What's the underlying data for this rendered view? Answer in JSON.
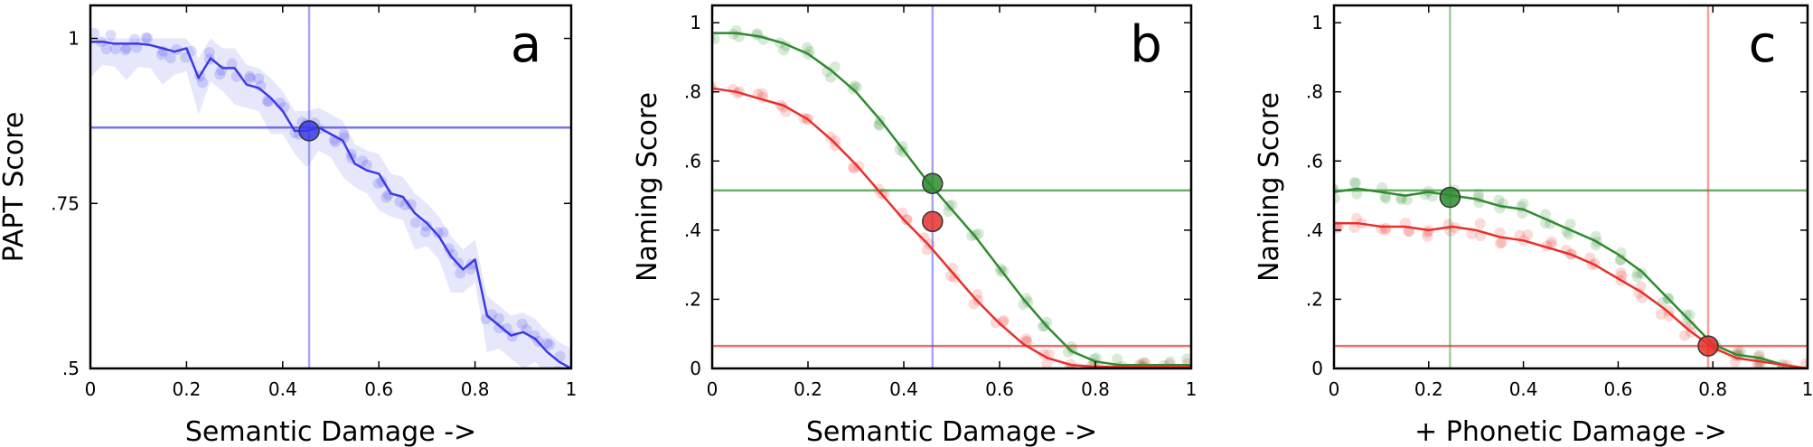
{
  "figure": {
    "colors": {
      "blue": "#3a3ae8",
      "green": "#2e8b2e",
      "red": "#e8302a"
    }
  },
  "chart_data": [
    {
      "type": "line",
      "panel_label": "a",
      "xlabel": "Semantic Damage ->",
      "ylabel": "PAPT Score",
      "xlim": [
        0,
        1
      ],
      "ylim": [
        0.5,
        1.05
      ],
      "xticks": [
        0,
        0.2,
        0.4,
        0.6,
        0.8,
        1
      ],
      "xtick_labels": [
        "0",
        "0.2",
        "0.4",
        "0.6",
        "0.8",
        "1"
      ],
      "yticks": [
        0.5,
        0.75,
        1
      ],
      "ytick_labels": [
        ".5",
        ".75",
        "1"
      ],
      "grid": false,
      "series": [
        {
          "color": "#3a3ae8",
          "x": [
            0,
            0.025,
            0.05,
            0.075,
            0.1,
            0.125,
            0.15,
            0.175,
            0.2,
            0.225,
            0.25,
            0.275,
            0.3,
            0.325,
            0.35,
            0.375,
            0.4,
            0.425,
            0.45,
            0.475,
            0.5,
            0.525,
            0.55,
            0.575,
            0.6,
            0.625,
            0.65,
            0.675,
            0.7,
            0.725,
            0.75,
            0.775,
            0.8,
            0.825,
            0.85,
            0.875,
            0.9,
            0.925,
            0.95,
            0.975,
            1
          ],
          "y": [
            0.995,
            0.995,
            0.992,
            0.992,
            0.992,
            0.99,
            0.985,
            0.98,
            0.985,
            0.94,
            0.97,
            0.955,
            0.955,
            0.93,
            0.925,
            0.91,
            0.89,
            0.86,
            0.86,
            0.865,
            0.855,
            0.845,
            0.81,
            0.8,
            0.795,
            0.765,
            0.76,
            0.735,
            0.72,
            0.7,
            0.67,
            0.65,
            0.665,
            0.58,
            0.565,
            0.55,
            0.555,
            0.545,
            0.525,
            0.51,
            0.5
          ]
        }
      ],
      "marker": {
        "x": 0.455,
        "y": 0.86,
        "color": "#3a3ae8"
      },
      "hline": {
        "y": 0.865,
        "color": "#3a3ae8"
      },
      "vline": {
        "x": 0.455,
        "color": "#3a3ae8"
      }
    },
    {
      "type": "line",
      "panel_label": "b",
      "xlabel": "Semantic Damage ->",
      "ylabel": "Naming Score",
      "xlim": [
        0,
        1
      ],
      "ylim": [
        0,
        1.05
      ],
      "xticks": [
        0,
        0.2,
        0.4,
        0.6,
        0.8,
        1
      ],
      "xtick_labels": [
        "0",
        "0.2",
        "0.4",
        "0.6",
        "0.8",
        "1"
      ],
      "yticks": [
        0,
        0.2,
        0.4,
        0.6,
        0.8,
        1
      ],
      "ytick_labels": [
        "0",
        ".2",
        ".4",
        ".6",
        ".8",
        "1"
      ],
      "grid": false,
      "series": [
        {
          "color": "#2e8b2e",
          "x": [
            0,
            0.05,
            0.1,
            0.15,
            0.2,
            0.25,
            0.3,
            0.35,
            0.4,
            0.45,
            0.5,
            0.55,
            0.6,
            0.65,
            0.7,
            0.75,
            0.8,
            0.85,
            0.9,
            0.95,
            1
          ],
          "y": [
            0.97,
            0.97,
            0.96,
            0.94,
            0.91,
            0.86,
            0.8,
            0.72,
            0.63,
            0.54,
            0.46,
            0.38,
            0.29,
            0.2,
            0.12,
            0.05,
            0.02,
            0.01,
            0.01,
            0.01,
            0.01
          ]
        },
        {
          "color": "#e8302a",
          "x": [
            0,
            0.05,
            0.1,
            0.15,
            0.2,
            0.25,
            0.3,
            0.35,
            0.4,
            0.45,
            0.5,
            0.55,
            0.6,
            0.65,
            0.7,
            0.75,
            0.8,
            0.85,
            0.9,
            0.95,
            1
          ],
          "y": [
            0.81,
            0.8,
            0.78,
            0.76,
            0.72,
            0.66,
            0.59,
            0.51,
            0.43,
            0.36,
            0.28,
            0.2,
            0.13,
            0.07,
            0.03,
            0.01,
            0.005,
            0.005,
            0.005,
            0.005,
            0.005
          ]
        }
      ],
      "markers": [
        {
          "x": 0.46,
          "y": 0.535,
          "color": "#2e8b2e"
        },
        {
          "x": 0.46,
          "y": 0.425,
          "color": "#e8302a"
        }
      ],
      "hlines": [
        {
          "y": 0.515,
          "color": "#2e8b2e"
        },
        {
          "y": 0.065,
          "color": "#e8302a"
        }
      ],
      "vline": {
        "x": 0.46,
        "color": "#3a3ae8"
      }
    },
    {
      "type": "line",
      "panel_label": "c",
      "xlabel": "+ Phonetic Damage ->",
      "ylabel": "Naming Score",
      "xlim": [
        0,
        1
      ],
      "ylim": [
        0,
        1.05
      ],
      "xticks": [
        0,
        0.2,
        0.4,
        0.6,
        0.8,
        1
      ],
      "xtick_labels": [
        "0",
        "0.2",
        "0.4",
        "0.6",
        "0.8",
        "1"
      ],
      "yticks": [
        0,
        0.2,
        0.4,
        0.6,
        0.8,
        1
      ],
      "ytick_labels": [
        "0",
        ".2",
        ".4",
        ".6",
        ".8",
        "1"
      ],
      "grid": false,
      "series": [
        {
          "color": "#2e8b2e",
          "x": [
            0,
            0.05,
            0.1,
            0.15,
            0.2,
            0.25,
            0.3,
            0.35,
            0.4,
            0.45,
            0.5,
            0.55,
            0.6,
            0.65,
            0.7,
            0.75,
            0.8,
            0.85,
            0.9,
            0.95,
            1
          ],
          "y": [
            0.51,
            0.52,
            0.51,
            0.5,
            0.51,
            0.5,
            0.49,
            0.47,
            0.46,
            0.43,
            0.4,
            0.37,
            0.33,
            0.28,
            0.21,
            0.14,
            0.07,
            0.04,
            0.03,
            0.01,
            0.0
          ]
        },
        {
          "color": "#e8302a",
          "x": [
            0,
            0.05,
            0.1,
            0.15,
            0.2,
            0.25,
            0.3,
            0.35,
            0.4,
            0.45,
            0.5,
            0.55,
            0.6,
            0.65,
            0.7,
            0.75,
            0.8,
            0.85,
            0.9,
            0.95,
            1
          ],
          "y": [
            0.42,
            0.42,
            0.41,
            0.41,
            0.4,
            0.41,
            0.4,
            0.38,
            0.37,
            0.35,
            0.33,
            0.3,
            0.26,
            0.22,
            0.17,
            0.11,
            0.06,
            0.03,
            0.02,
            0.01,
            0.0
          ]
        }
      ],
      "marker": {
        "x": 0.79,
        "y": 0.065,
        "color": "#e8302a"
      },
      "marker2": {
        "x": 0.245,
        "y": 0.495,
        "color": "#2e8b2e"
      },
      "hlines": [
        {
          "y": 0.515,
          "color": "#2e8b2e"
        },
        {
          "y": 0.065,
          "color": "#e8302a"
        }
      ],
      "vlines": [
        {
          "x": 0.245,
          "color": "#2e8b2e"
        },
        {
          "x": 0.79,
          "color": "#e8302a"
        }
      ]
    }
  ]
}
